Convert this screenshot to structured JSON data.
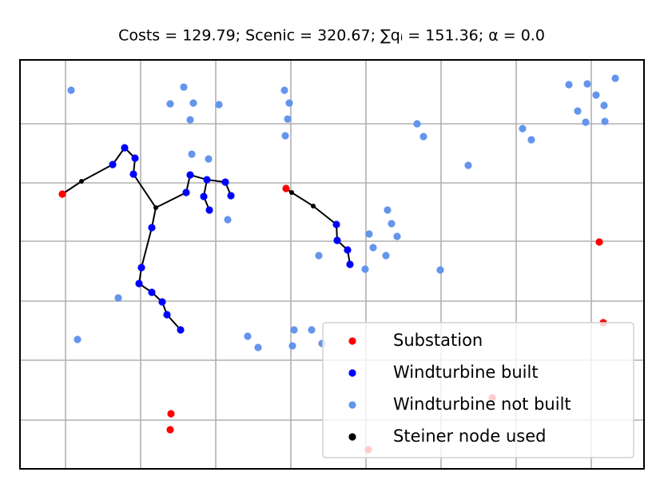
{
  "chart_data": {
    "type": "scatter",
    "title": "Costs = 129.79; Scenic = 320.67; ∑qᵢ = 151.36; α = 0.0",
    "xlim": [
      0,
      781
    ],
    "ylim": [
      0,
      512
    ],
    "xticks": [
      57,
      151,
      245,
      339,
      433,
      527,
      621,
      715
    ],
    "yticks": [
      61,
      136,
      210,
      285,
      358,
      432
    ],
    "grid": true,
    "legend": "lower right",
    "series": [
      {
        "name": "Substation",
        "color": "#ff0000",
        "x": [
          53,
          333,
          725,
          730,
          189,
          188,
          436,
          591
        ],
        "y": [
          344,
          351,
          284,
          183,
          69,
          49,
          24,
          89
        ]
      },
      {
        "name": "Windturbine built",
        "color": "#0000ff",
        "x": [
          131,
          116,
          144,
          142,
          213,
          208,
          234,
          257,
          264,
          230,
          237,
          165,
          152,
          149,
          165,
          178,
          184,
          201,
          396,
          397,
          410,
          413
        ],
        "y": [
          402,
          381,
          389,
          369,
          368,
          346,
          362,
          359,
          342,
          341,
          324,
          302,
          252,
          232,
          221,
          209,
          193,
          174,
          306,
          286,
          274,
          256
        ]
      },
      {
        "name": "Windturbine not built",
        "color": "#6495ed",
        "x": [
          64,
          205,
          188,
          217,
          249,
          213,
          331,
          337,
          335,
          332,
          215,
          236,
          260,
          123,
          72,
          285,
          298,
          343,
          341,
          365,
          378,
          497,
          505,
          561,
          629,
          640,
          687,
          710,
          745,
          721,
          698,
          731,
          708,
          732,
          460,
          465,
          472,
          437,
          442,
          374,
          458,
          432,
          526
        ],
        "y": [
          474,
          478,
          457,
          458,
          456,
          437,
          474,
          458,
          438,
          417,
          394,
          388,
          312,
          214,
          162,
          166,
          152,
          174,
          154,
          174,
          157,
          432,
          416,
          380,
          426,
          412,
          481,
          482,
          489,
          468,
          448,
          455,
          434,
          435,
          324,
          307,
          291,
          294,
          277,
          267,
          267,
          250,
          249
        ]
      },
      {
        "name": "Steiner node used",
        "color": "#000000",
        "x": [
          77,
          170,
          340,
          367
        ],
        "y": [
          360,
          327,
          346,
          329
        ]
      }
    ]
  }
}
